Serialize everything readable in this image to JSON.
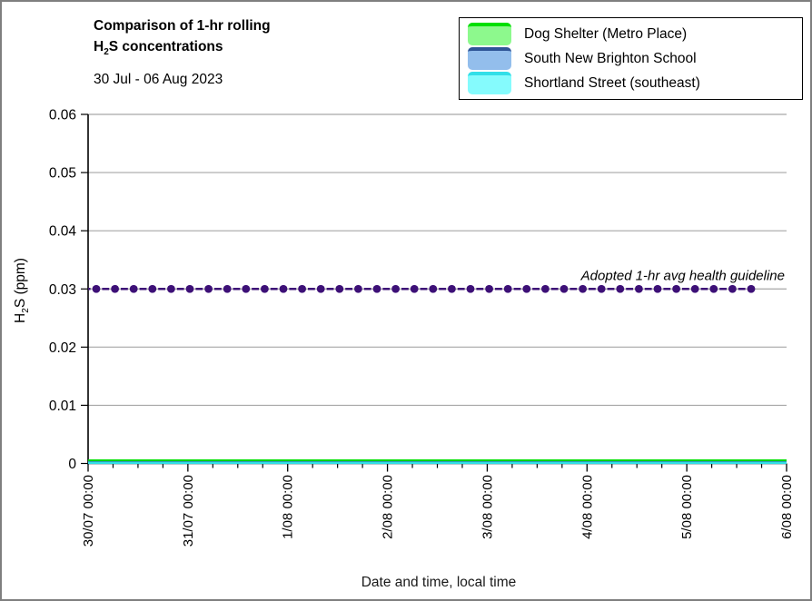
{
  "accent_colors": {
    "frame_border": "#7F7F7F",
    "grid": "#A6A6A6",
    "axis": "#000000"
  },
  "chart_data": {
    "type": "line",
    "title": "Comparison of 1-hr rolling H2S concentrations",
    "title_parts": {
      "line1": "Comparison of 1-hr rolling",
      "line2_pre": "H",
      "line2_sub": "2",
      "line2_post": "S concentrations"
    },
    "subtitle": "30 Jul - 06 Aug 2023",
    "xlabel": "Date and time, local time",
    "ylabel": "H2S (ppm)",
    "ylabel_parts": {
      "pre": "H",
      "sub": "2",
      "post": "S (ppm)"
    },
    "ylim": [
      0,
      0.06
    ],
    "yticks": [
      0,
      0.01,
      0.02,
      0.03,
      0.04,
      0.05,
      0.06
    ],
    "ytick_labels": [
      "0",
      "0.01",
      "0.02",
      "0.03",
      "0.04",
      "0.05",
      "0.06"
    ],
    "x_major_labels": [
      "30/07 00:00",
      "31/07 00:00",
      "1/08 00:00",
      "2/08 00:00",
      "3/08 00:00",
      "4/08 00:00",
      "5/08 00:00",
      "6/08 00:00"
    ],
    "x_minor_ticks_per_interval": 3,
    "grid": {
      "horizontal": true,
      "vertical": false,
      "color": "#A6A6A6"
    },
    "legend_position": "top-right",
    "series": [
      {
        "name": "Dog Shelter (Metro Place)",
        "line_color": "#00DF00",
        "fill_color": "#8DF98D",
        "shape": "flat",
        "value": 0.0005
      },
      {
        "name": "South New Brighton School",
        "line_color": "#2F5597",
        "fill_color": "#93BEEC",
        "shape": "flat",
        "value": 0.0002
      },
      {
        "name": "Shortland Street (southeast)",
        "line_color": "#31DFE8",
        "fill_color": "#85FBFD",
        "shape": "flat",
        "value": 0.0001
      }
    ],
    "guideline": {
      "value": 0.03,
      "label": "Adopted 1-hr avg health guideline",
      "color": "#3D1077",
      "style": "dashed-with-dot-markers"
    }
  }
}
